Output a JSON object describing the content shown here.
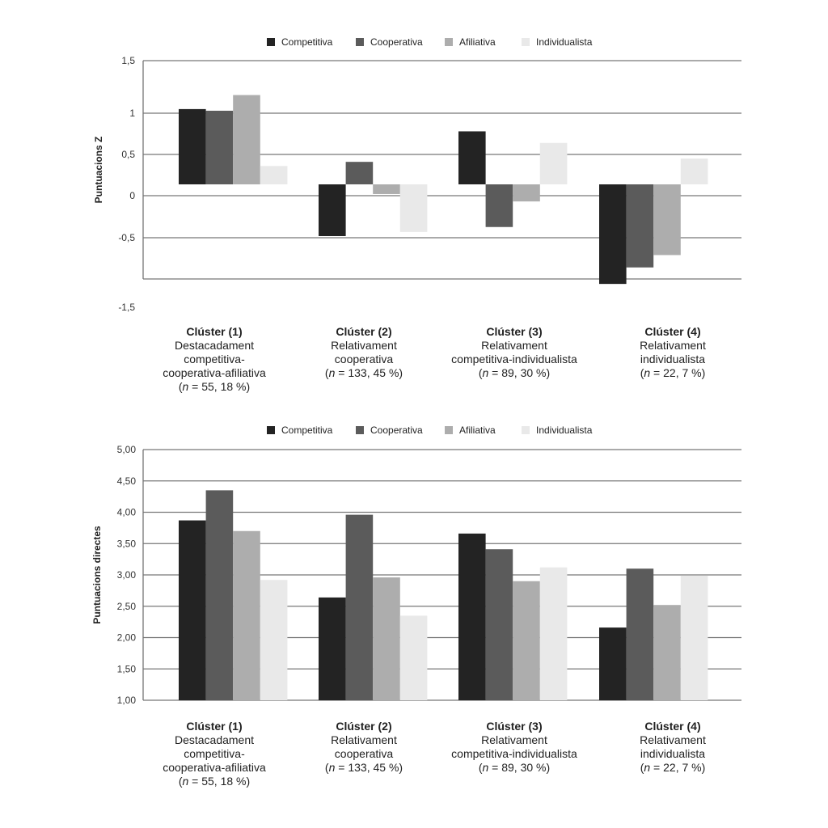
{
  "legend": [
    "Competitiva",
    "Cooperativa",
    "Afiliativa",
    "Individualista"
  ],
  "colors": {
    "Competitiva": "#232323",
    "Cooperativa": "#5b5b5b",
    "Afiliativa": "#adadad",
    "Individualista": "#e9e9e9",
    "grid": "#777777"
  },
  "categories": [
    {
      "title": "Clúster (1)",
      "desc_lines": [
        "Destacadament",
        "competitiva-",
        "cooperativa-afiliativa"
      ],
      "n_symbol": "n",
      "stats": "= 55, 18 %"
    },
    {
      "title": "Clúster (2)",
      "desc_lines": [
        "Relativament",
        "cooperativa"
      ],
      "n_symbol": "n",
      "stats": "= 133, 45 %"
    },
    {
      "title": "Clúster (3)",
      "desc_lines": [
        "Relativament",
        "competitiva-individualista"
      ],
      "n_symbol": "n",
      "stats": "= 89, 30 %"
    },
    {
      "title": "Clúster (4)",
      "desc_lines": [
        "Relativament",
        "individualista"
      ],
      "n_symbol": "n",
      "stats": "= 22, 7 %"
    }
  ],
  "chart_data": [
    {
      "type": "bar",
      "ylabel": "Puntuacions Z",
      "yticks": [
        "1,5",
        "1",
        "0,5",
        "0",
        "-0,5",
        "-1,5"
      ],
      "grid": true,
      "legend_position": "top",
      "categories": [
        "Clúster (1)",
        "Clúster (2)",
        "Clúster (3)",
        "Clúster (4)"
      ],
      "series": [
        {
          "name": "Competitiva",
          "values": [
            1.05,
            -0.49,
            0.78,
            -1.07
          ]
        },
        {
          "name": "Cooperativa",
          "values": [
            1.03,
            0.41,
            -0.38,
            -0.87
          ]
        },
        {
          "name": "Afiliativa",
          "values": [
            1.22,
            0.02,
            -0.07,
            -0.72
          ]
        },
        {
          "name": "Individualista",
          "values": [
            0.36,
            -0.44,
            0.64,
            0.45
          ]
        }
      ]
    },
    {
      "type": "bar",
      "ylabel": "Puntuacions directes",
      "yticks": [
        "5,00",
        "4,50",
        "4,00",
        "3,50",
        "3,00",
        "2,50",
        "2,00",
        "1,50",
        "1,00"
      ],
      "ylim": [
        1,
        5
      ],
      "grid": true,
      "legend_position": "top",
      "categories": [
        "Clúster (1)",
        "Clúster (2)",
        "Clúster (3)",
        "Clúster (4)"
      ],
      "series": [
        {
          "name": "Competitiva",
          "values": [
            3.87,
            2.64,
            3.66,
            2.16
          ]
        },
        {
          "name": "Cooperativa",
          "values": [
            4.35,
            3.96,
            3.41,
            3.1
          ]
        },
        {
          "name": "Afiliativa",
          "values": [
            3.7,
            2.96,
            2.9,
            2.52
          ]
        },
        {
          "name": "Individualista",
          "values": [
            2.92,
            2.35,
            3.12,
            2.99
          ]
        }
      ]
    }
  ]
}
